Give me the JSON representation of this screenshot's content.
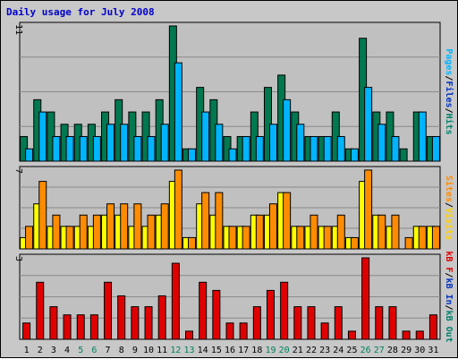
{
  "chart_data": {
    "type": "bar",
    "title": "Daily usage for July 2008",
    "categories": [
      "1",
      "2",
      "3",
      "4",
      "5",
      "6",
      "7",
      "8",
      "9",
      "10",
      "11",
      "12",
      "13",
      "14",
      "15",
      "16",
      "17",
      "18",
      "19",
      "20",
      "21",
      "22",
      "23",
      "24",
      "25",
      "26",
      "27",
      "28",
      "29",
      "30",
      "31"
    ],
    "weekend_days": [
      "5",
      "6",
      "12",
      "13",
      "19",
      "20",
      "26",
      "27"
    ],
    "colors": {
      "background": "#c8c8c8",
      "title": "#0000cc",
      "hits": "#00b4ff",
      "files": "#007850",
      "pages": "#00b4ff",
      "visits": "#ffd000",
      "sites": "#ff8c00",
      "kbin": "#0030c0",
      "kbout": "#00806a",
      "kbf": "#e00000",
      "weekday_label": "#000000",
      "weekend_label": "#008060"
    },
    "panels": [
      {
        "name": "hits-files",
        "ymax": 11,
        "max_label": "11",
        "right_labels": [
          {
            "text": "Pages",
            "color": "#00b4ff"
          },
          {
            "text": "/",
            "color": "#000000"
          },
          {
            "text": "Files",
            "color": "#0030c0"
          },
          {
            "text": "/",
            "color": "#000000"
          },
          {
            "text": "Hits",
            "color": "#00806a"
          }
        ],
        "series": [
          {
            "name": "Hits",
            "color": "#007850",
            "values": [
              2,
              5,
              4,
              3,
              3,
              3,
              4,
              5,
              4,
              4,
              5,
              11,
              1,
              6,
              5,
              2,
              2,
              4,
              6,
              7,
              4,
              2,
              2,
              4,
              1,
              10,
              4,
              4,
              1,
              4,
              2
            ]
          },
          {
            "name": "Files",
            "color": "#00b4ff",
            "values": [
              1,
              4,
              2,
              2,
              2,
              2,
              3,
              3,
              2,
              2,
              3,
              8,
              1,
              4,
              3,
              1,
              2,
              2,
              3,
              5,
              3,
              2,
              2,
              2,
              1,
              6,
              3,
              2,
              0,
              4,
              2
            ]
          }
        ]
      },
      {
        "name": "visits-sites",
        "ymax": 7,
        "max_label": "7",
        "right_labels": [
          {
            "text": "Sites",
            "color": "#ff8c00"
          },
          {
            "text": "/",
            "color": "#000000"
          },
          {
            "text": "Visits",
            "color": "#ffd000"
          }
        ],
        "series": [
          {
            "name": "Visits",
            "color": "#ffff00",
            "values": [
              1,
              4,
              2,
              2,
              2,
              2,
              3,
              3,
              2,
              2,
              3,
              6,
              1,
              4,
              3,
              2,
              2,
              3,
              3,
              5,
              2,
              2,
              2,
              2,
              1,
              6,
              3,
              2,
              0,
              2,
              2
            ]
          },
          {
            "name": "Sites",
            "color": "#ff8c00",
            "values": [
              2,
              6,
              3,
              2,
              3,
              3,
              4,
              4,
              4,
              3,
              4,
              7,
              1,
              5,
              5,
              2,
              2,
              3,
              4,
              5,
              2,
              3,
              2,
              3,
              1,
              7,
              3,
              3,
              1,
              2,
              2
            ]
          }
        ]
      },
      {
        "name": "kbytes",
        "ymax": 3,
        "max_label": "3",
        "right_labels": [
          {
            "text": "kB F",
            "color": "#e00000"
          },
          {
            "text": "/",
            "color": "#000000"
          },
          {
            "text": "kB In",
            "color": "#0030c0"
          },
          {
            "text": "/",
            "color": "#000000"
          },
          {
            "text": "kB Out",
            "color": "#00806a"
          }
        ],
        "series": [
          {
            "name": "kB F",
            "color": "#e00000",
            "values": [
              0.6,
              2.1,
              1.2,
              0.9,
              0.9,
              0.9,
              2.1,
              1.6,
              1.2,
              1.2,
              1.6,
              2.8,
              0.3,
              2.1,
              1.8,
              0.6,
              0.6,
              1.2,
              1.8,
              2.1,
              1.2,
              1.2,
              0.6,
              1.2,
              0.3,
              3.0,
              1.2,
              1.2,
              0.3,
              0.3,
              0.9
            ]
          }
        ]
      }
    ]
  }
}
